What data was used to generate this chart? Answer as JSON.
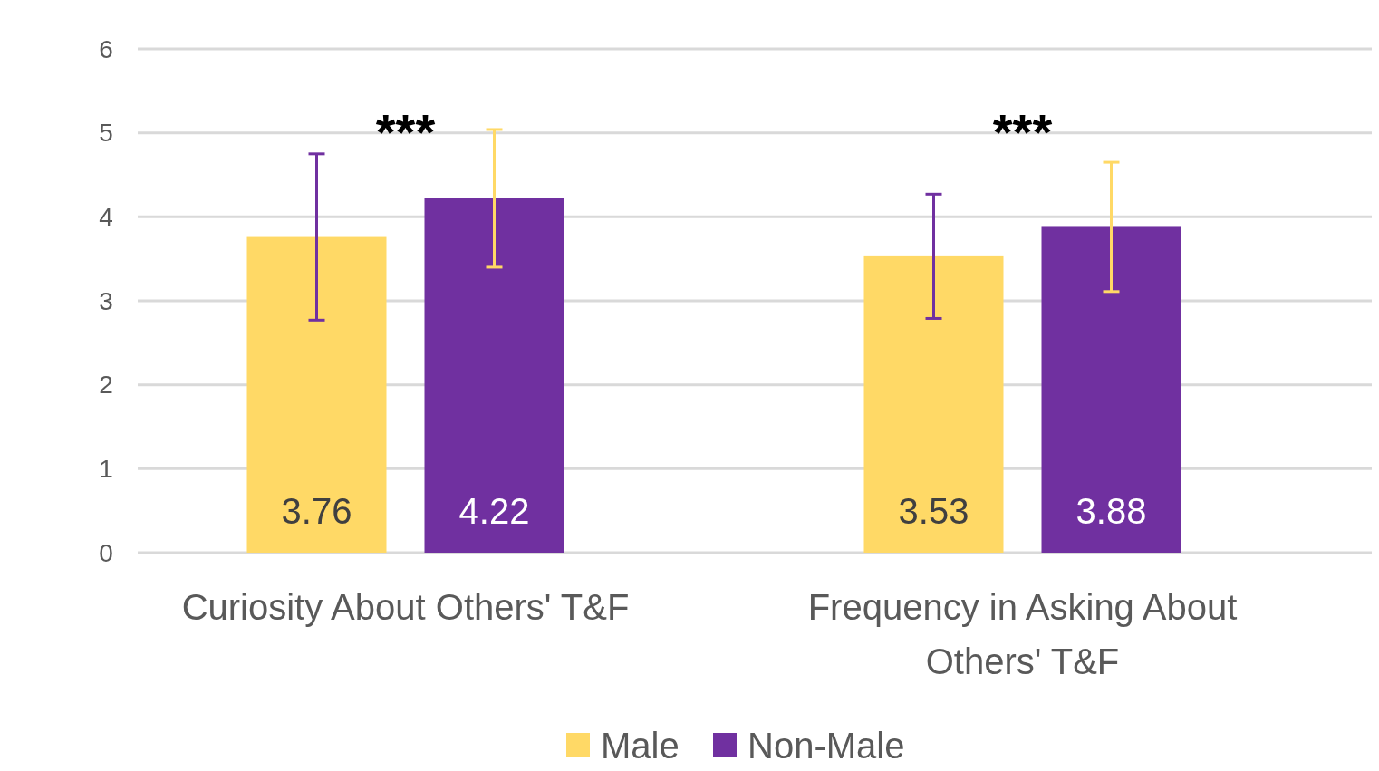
{
  "chart_data": {
    "type": "bar",
    "categories": [
      "Curiosity About Others' T&F",
      "Frequency in Asking About Others' T&F"
    ],
    "series": [
      {
        "name": "Male",
        "color": "#ffd966",
        "values": [
          3.76,
          3.53
        ],
        "errors": [
          0.99,
          0.74
        ]
      },
      {
        "name": "Non-Male",
        "color": "#7030a0",
        "values": [
          4.22,
          3.88
        ],
        "errors": [
          0.82,
          0.77
        ]
      }
    ],
    "ylim": [
      0,
      6
    ],
    "yticks": [
      0,
      1,
      2,
      3,
      4,
      5,
      6
    ],
    "grid": "y",
    "legend": "bottom",
    "data_labels": true,
    "annotations": [
      "***",
      "***"
    ]
  }
}
